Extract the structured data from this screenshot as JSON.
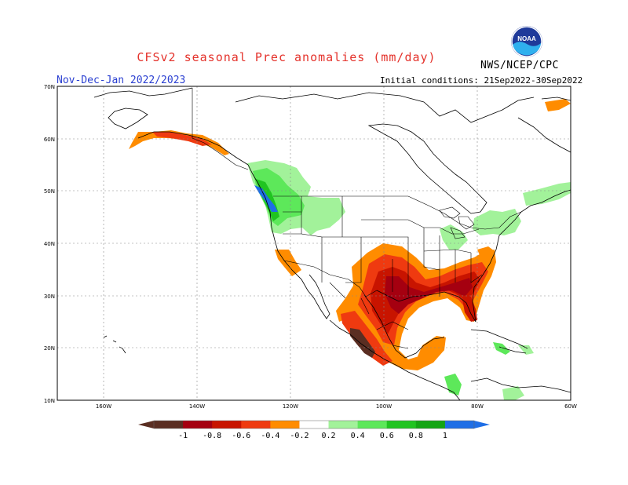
{
  "header": {
    "title": "CFSv2 seasonal Prec anomalies (mm/day)",
    "agency": "NWS/NCEP/CPC",
    "season": "Nov-Dec-Jan 2022/2023",
    "initial_conditions": "Initial conditions: 21Sep2022-30Sep2022",
    "logo_text": "NOAA"
  },
  "map": {
    "lon_labels": [
      "160W",
      "140W",
      "120W",
      "100W",
      "80W",
      "60W"
    ],
    "lat_labels": [
      "70N",
      "60N",
      "50N",
      "40N",
      "30N",
      "20N",
      "10N"
    ]
  },
  "colorbar": {
    "labels": [
      "-1",
      "-0.8",
      "-0.6",
      "-0.4",
      "-0.2",
      "0.2",
      "0.4",
      "0.6",
      "0.8",
      "1"
    ],
    "colors": [
      "#5a2e22",
      "#a50010",
      "#c81400",
      "#ef3a10",
      "#ff8c00",
      "#ffffff",
      "#a2f29a",
      "#5de85a",
      "#20c420",
      "#13a513",
      "#1e6ee6"
    ]
  },
  "colors": {
    "dry_extreme": "#5a2e22",
    "dry_strong": "#a50010",
    "dry_mod": "#c81400",
    "dry_weak": "#ef3a10",
    "dry_slight": "#ff8c00",
    "wet_slight": "#a2f29a",
    "wet_weak": "#5de85a",
    "wet_mod": "#20c420",
    "wet_strong": "#13a513",
    "wet_extreme": "#1e6ee6"
  }
}
